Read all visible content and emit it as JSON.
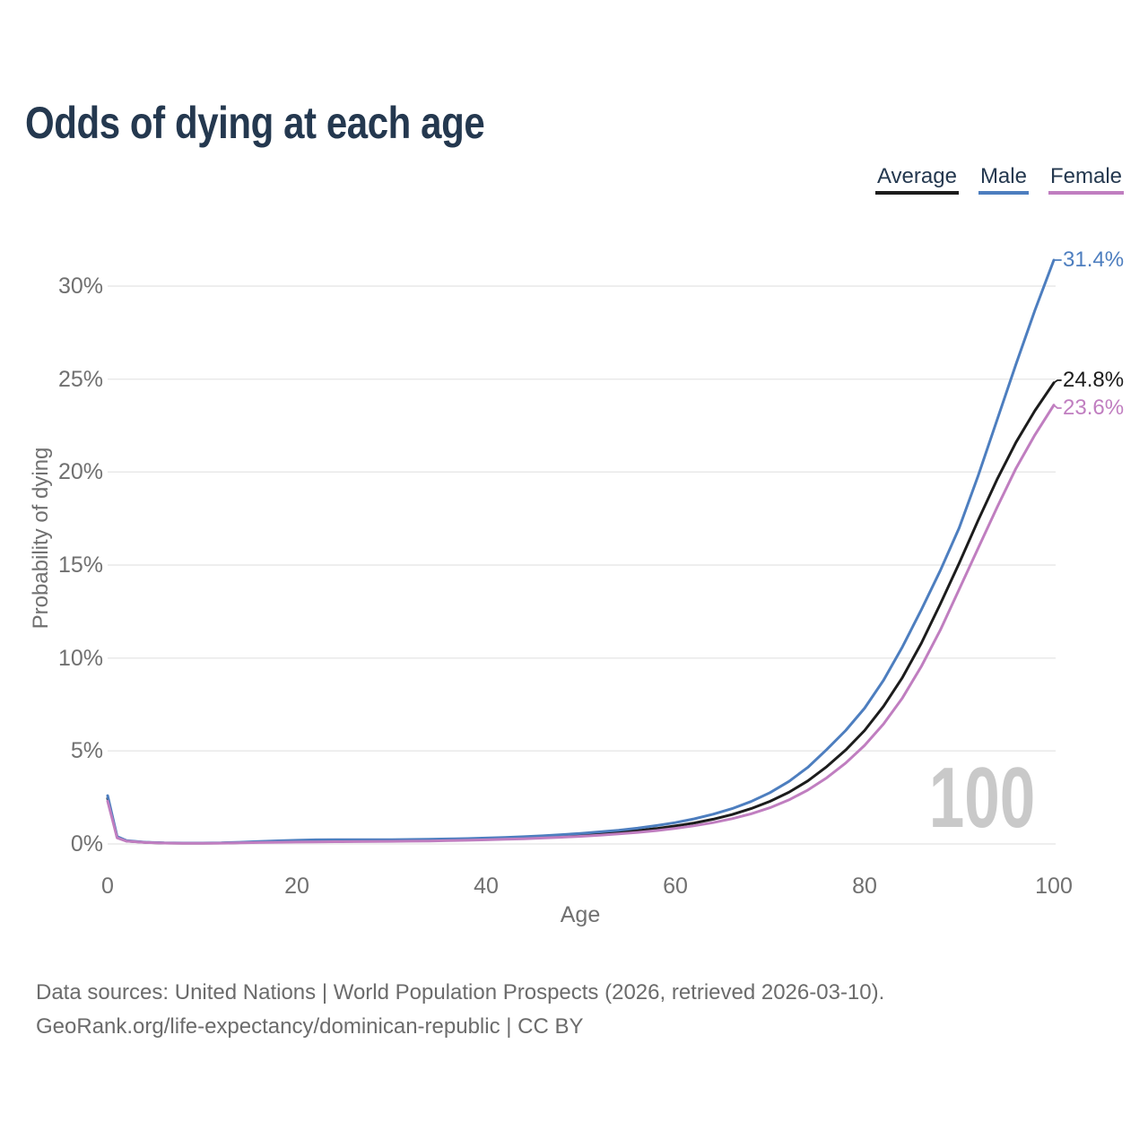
{
  "title": "Odds of dying at each age",
  "title_color": "#24384f",
  "legend": {
    "items": [
      {
        "label": "Average"
      },
      {
        "label": "Male"
      },
      {
        "label": "Female"
      }
    ]
  },
  "watermark": "100",
  "footer": {
    "line1": "Data sources: United Nations | World Population Prospects (2026, retrieved 2026-03-10).",
    "line2": "GeoRank.org/life-expectancy/dominican-republic | CC BY"
  },
  "chart_data": {
    "type": "line",
    "title": "Odds of dying at each age",
    "xlabel": "Age",
    "ylabel": "Probability of dying",
    "xlim": [
      0,
      100
    ],
    "ylim": [
      0,
      31.5
    ],
    "grid": "horizontal",
    "x_ticks": [
      "0",
      "20",
      "40",
      "60",
      "80",
      "100"
    ],
    "y_ticks": [
      "0%",
      "5%",
      "10%",
      "15%",
      "20%",
      "25%",
      "30%"
    ],
    "y_tick_values": [
      0,
      5,
      10,
      15,
      20,
      25,
      30
    ],
    "legend_position": "top-right",
    "x": [
      0,
      1,
      2,
      4,
      6,
      8,
      10,
      12,
      14,
      16,
      18,
      20,
      22,
      24,
      26,
      28,
      30,
      32,
      34,
      36,
      38,
      40,
      42,
      44,
      46,
      48,
      50,
      52,
      54,
      56,
      58,
      60,
      62,
      64,
      66,
      68,
      70,
      72,
      74,
      76,
      78,
      80,
      82,
      84,
      86,
      88,
      90,
      92,
      94,
      96,
      98,
      100
    ],
    "series": [
      {
        "name": "Average",
        "color": "#1c1c1c",
        "end_label": "24.8%",
        "end_value": 24.8,
        "values": [
          2.45,
          0.36,
          0.16,
          0.08,
          0.05,
          0.045,
          0.045,
          0.05,
          0.07,
          0.1,
          0.13,
          0.15,
          0.16,
          0.17,
          0.18,
          0.18,
          0.19,
          0.2,
          0.21,
          0.22,
          0.24,
          0.27,
          0.3,
          0.33,
          0.37,
          0.42,
          0.48,
          0.55,
          0.63,
          0.72,
          0.83,
          0.97,
          1.13,
          1.33,
          1.58,
          1.9,
          2.29,
          2.78,
          3.39,
          4.16,
          5.05,
          6.1,
          7.4,
          8.95,
          10.8,
          12.9,
          15.1,
          17.4,
          19.6,
          21.6,
          23.3,
          24.8
        ]
      },
      {
        "name": "Male",
        "color": "#4d7ebf",
        "end_label": "31.4%",
        "end_value": 31.4,
        "values": [
          2.6,
          0.4,
          0.18,
          0.09,
          0.06,
          0.05,
          0.05,
          0.06,
          0.09,
          0.13,
          0.17,
          0.2,
          0.22,
          0.23,
          0.23,
          0.23,
          0.23,
          0.24,
          0.25,
          0.27,
          0.29,
          0.32,
          0.35,
          0.39,
          0.44,
          0.5,
          0.57,
          0.65,
          0.74,
          0.85,
          0.99,
          1.15,
          1.35,
          1.6,
          1.9,
          2.28,
          2.76,
          3.36,
          4.12,
          5.08,
          6.1,
          7.3,
          8.8,
          10.6,
          12.6,
          14.7,
          17.0,
          19.8,
          22.8,
          25.8,
          28.7,
          31.4
        ]
      },
      {
        "name": "Female",
        "color": "#c07ec0",
        "end_label": "23.6%",
        "end_value": 23.6,
        "values": [
          2.3,
          0.33,
          0.15,
          0.075,
          0.05,
          0.04,
          0.04,
          0.045,
          0.06,
          0.075,
          0.09,
          0.1,
          0.11,
          0.12,
          0.125,
          0.13,
          0.14,
          0.15,
          0.16,
          0.18,
          0.2,
          0.22,
          0.25,
          0.28,
          0.32,
          0.36,
          0.41,
          0.47,
          0.54,
          0.62,
          0.72,
          0.84,
          0.98,
          1.15,
          1.36,
          1.62,
          1.95,
          2.37,
          2.9,
          3.56,
          4.35,
          5.3,
          6.45,
          7.85,
          9.55,
          11.5,
          13.7,
          15.9,
          18.1,
          20.2,
          22.0,
          23.6
        ]
      }
    ]
  }
}
